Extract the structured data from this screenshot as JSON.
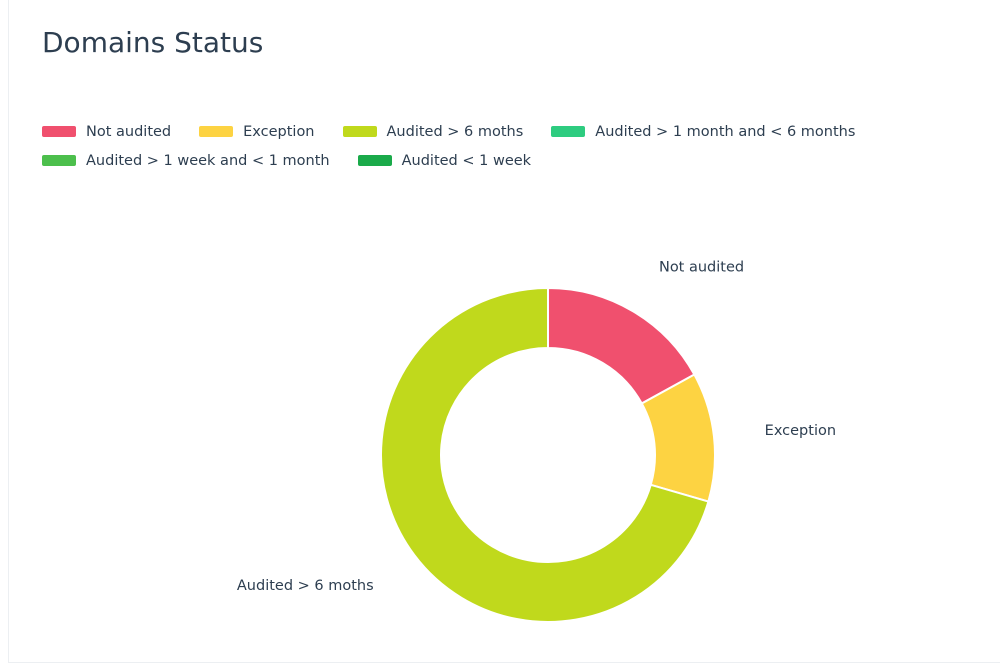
{
  "chart_data": {
    "type": "donut",
    "title": "Domains Status",
    "categories": [
      "Not audited",
      "Exception",
      "Audited > 6 moths",
      "Audited > 1 month and < 6 months",
      "Audited > 1 week and < 1 month",
      "Audited < 1 week"
    ],
    "values": [
      17,
      12.5,
      70.5,
      0,
      0,
      0
    ],
    "colors": [
      "#f0506e",
      "#fdd342",
      "#c0d91c",
      "#2ecc80",
      "#4cbf4c",
      "#1aaa4a"
    ],
    "legend": "top-left"
  }
}
